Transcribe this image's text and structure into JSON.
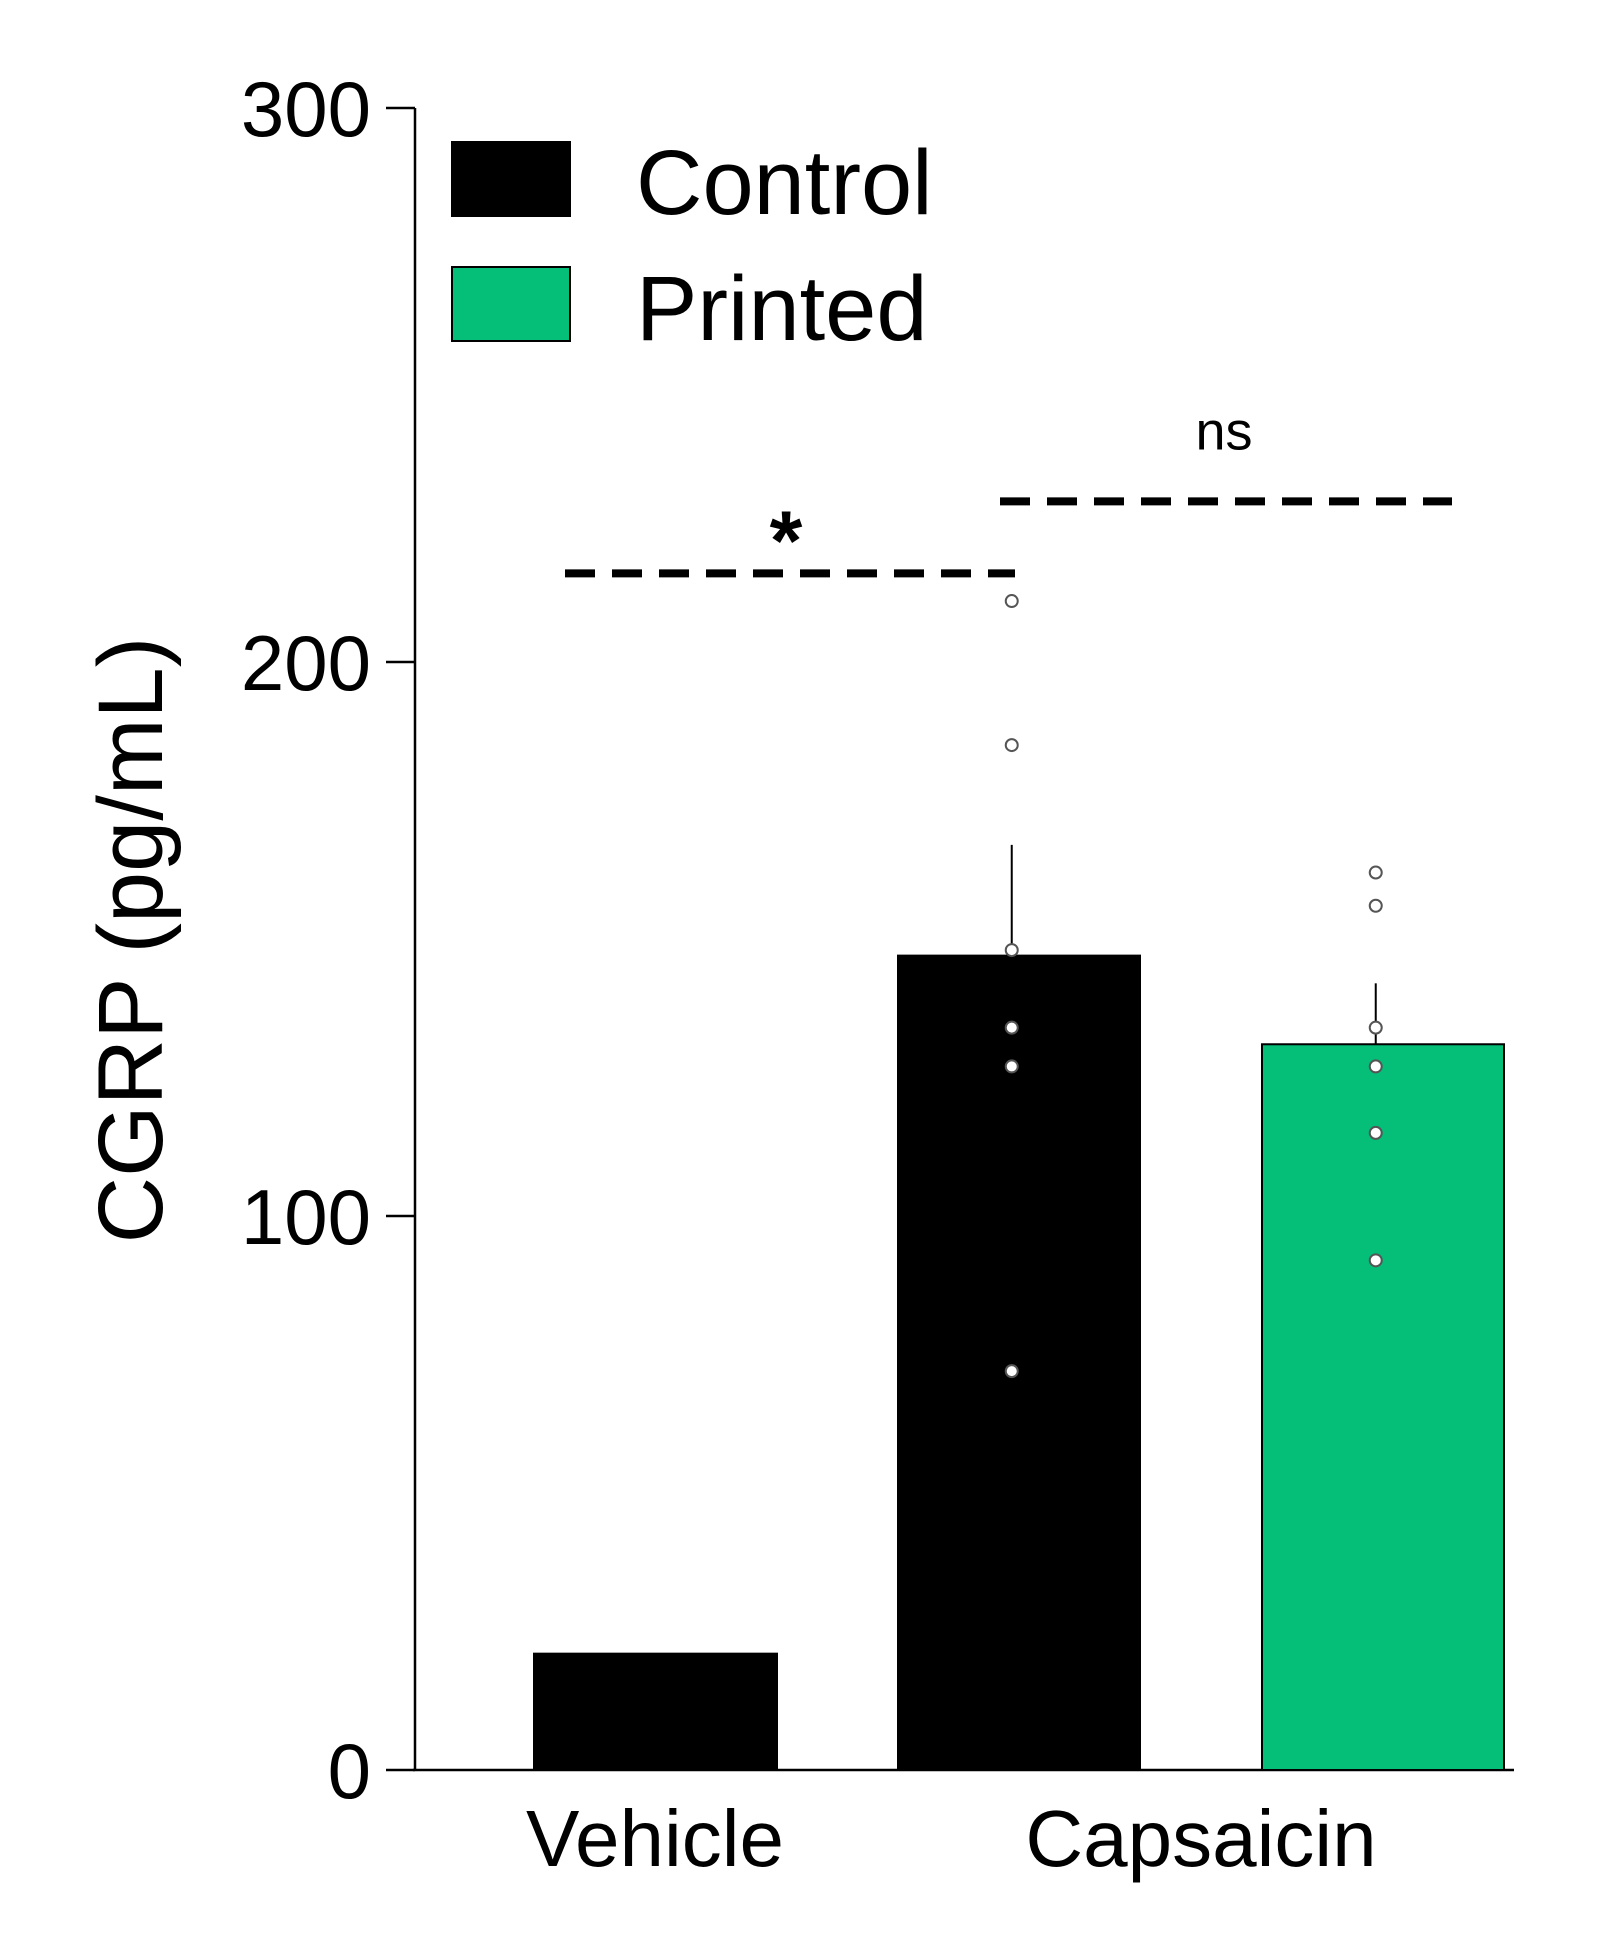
{
  "chart_data": {
    "type": "bar",
    "title": "",
    "xlabel": "",
    "ylabel": "CGRP (pg/mL)",
    "ylim": [
      0,
      300
    ],
    "yticks": [
      0,
      100,
      200,
      300
    ],
    "grid": false,
    "legend_position": "top-left",
    "groups": [
      "Vehicle",
      "Capsaicin"
    ],
    "series": [
      {
        "name": "Control",
        "color": "#000000",
        "values": [
          21,
          147
        ],
        "errors": [
          null,
          20
        ],
        "points": [
          [],
          [
            211,
            185,
            148,
            134,
            127,
            72
          ]
        ]
      },
      {
        "name": "Printed",
        "color": "#05BE78",
        "values": [
          null,
          131
        ],
        "errors": [
          null,
          11
        ],
        "points": [
          [],
          [
            162,
            156,
            134,
            127,
            115,
            92
          ]
        ]
      }
    ],
    "bars": [
      {
        "group": "Vehicle",
        "series": "Control",
        "value": 21
      },
      {
        "group": "Capsaicin",
        "series": "Control",
        "value": 147,
        "error": 20
      },
      {
        "group": "Capsaicin",
        "series": "Printed",
        "value": 131,
        "error": 11
      }
    ],
    "annotations": [
      {
        "text": "*",
        "comparison": "Vehicle Control vs Capsaicin Control"
      },
      {
        "text": "ns",
        "comparison": "Capsaicin Control vs Capsaicin Printed"
      }
    ]
  }
}
